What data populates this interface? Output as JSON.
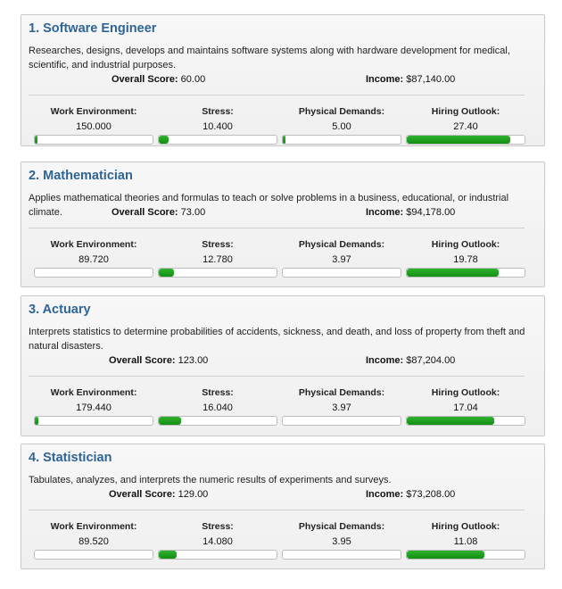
{
  "labels": {
    "overall_score": "Overall Score:",
    "income": "Income:",
    "work_environment": "Work Environment:",
    "stress": "Stress:",
    "physical_demands": "Physical Demands:",
    "hiring_outlook": "Hiring Outlook:"
  },
  "colors": {
    "title": "#2e6496",
    "bar_fill": "#1a9a1a"
  },
  "jobs": [
    {
      "title": "1. Software Engineer",
      "description": "Researches, designs, develops and maintains software systems along with hardware development for medical, scientific, and industrial purposes.",
      "overall_score": "60.00",
      "income": "$87,140.00",
      "work_environment": {
        "value": "150.000",
        "fill": 0.02
      },
      "stress": {
        "value": "10.400",
        "fill": 0.08
      },
      "physical_demands": {
        "value": "5.00",
        "fill": 0.02
      },
      "hiring_outlook": {
        "value": "27.40",
        "fill": 0.88
      }
    },
    {
      "title": "2. Mathematician",
      "description": "Applies mathematical theories and formulas to teach or solve problems in a business, educational, or industrial climate.",
      "overall_score": "73.00",
      "income": "$94,178.00",
      "work_environment": {
        "value": "89.720",
        "fill": 0.0
      },
      "stress": {
        "value": "12.780",
        "fill": 0.13
      },
      "physical_demands": {
        "value": "3.97",
        "fill": 0.0
      },
      "hiring_outlook": {
        "value": "19.78",
        "fill": 0.78
      }
    },
    {
      "title": "3. Actuary",
      "description": "Interprets statistics to determine probabilities of accidents, sickness, and death, and loss of property from theft and natural disasters.",
      "overall_score": "123.00",
      "income": "$87,204.00",
      "work_environment": {
        "value": "179.440",
        "fill": 0.03
      },
      "stress": {
        "value": "16.040",
        "fill": 0.19
      },
      "physical_demands": {
        "value": "3.97",
        "fill": 0.0
      },
      "hiring_outlook": {
        "value": "17.04",
        "fill": 0.74
      }
    },
    {
      "title": "4. Statistician",
      "description": "Tabulates, analyzes, and interprets the numeric results of experiments and surveys.",
      "overall_score": "129.00",
      "income": "$73,208.00",
      "work_environment": {
        "value": "89.520",
        "fill": 0.0
      },
      "stress": {
        "value": "14.080",
        "fill": 0.15
      },
      "physical_demands": {
        "value": "3.95",
        "fill": 0.0
      },
      "hiring_outlook": {
        "value": "11.08",
        "fill": 0.66
      }
    }
  ]
}
